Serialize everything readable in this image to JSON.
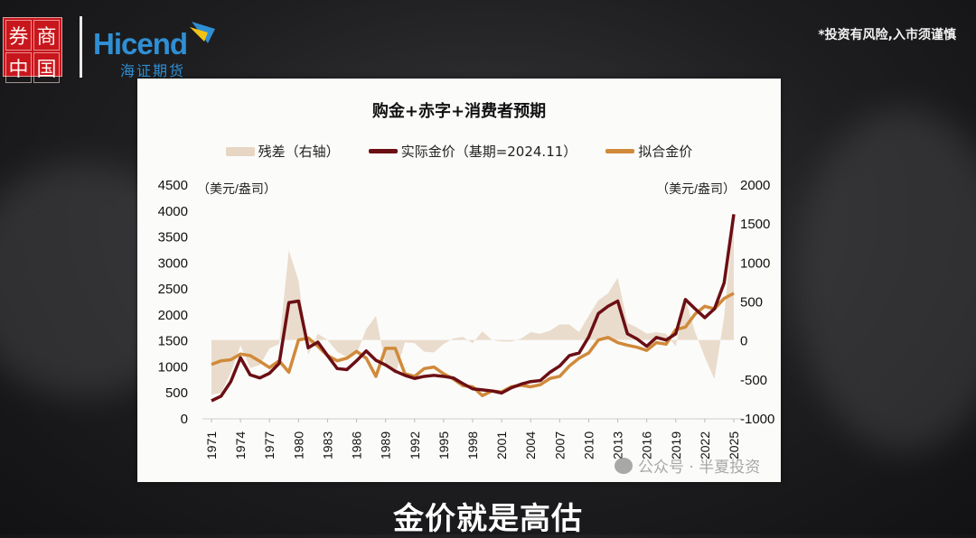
{
  "header": {
    "seal_chars": [
      "券",
      "商",
      "中",
      "国"
    ],
    "brand_name": "Hicend",
    "brand_cn": "海证期货",
    "disclaimer": "*投资有风险,入市须谨慎"
  },
  "subtitle": "金价就是高估",
  "watermark": {
    "label": "公众号 · 半夏投资"
  },
  "colors": {
    "actual": "#6b0f14",
    "fitted": "#d08a3a",
    "residual": "#e6d6c3"
  },
  "chart_data": {
    "type": "line",
    "title": "购金+赤字+消费者预期",
    "legend": [
      {
        "name": "残差（右轴）",
        "style": "area"
      },
      {
        "name": "实际金价（基期=2024.11）",
        "style": "line"
      },
      {
        "name": "拟合金价",
        "style": "line"
      }
    ],
    "legend_position": "top",
    "ylabel_left": "（美元/盎司）",
    "ylabel_right": "（美元/盎司）",
    "ylim_left": [
      0,
      4500
    ],
    "yticks_left": [
      "4500",
      "4000",
      "3500",
      "3000",
      "2500",
      "2000",
      "1500",
      "1000",
      "500",
      "0"
    ],
    "ylim_right": [
      -1000,
      2000
    ],
    "yticks_right": [
      "2000",
      "1500",
      "1000",
      "500",
      "0",
      "-500",
      "-1000"
    ],
    "xtick_labels": [
      "1971",
      "1974",
      "1977",
      "1980",
      "1983",
      "1986",
      "1989",
      "1992",
      "1995",
      "1998",
      "2001",
      "2004",
      "2007",
      "2010",
      "2013",
      "2016",
      "2019",
      "2022",
      "2025"
    ],
    "grid": false,
    "x": [
      1971,
      1972,
      1973,
      1974,
      1975,
      1976,
      1977,
      1978,
      1979,
      1980,
      1981,
      1982,
      1983,
      1984,
      1985,
      1986,
      1987,
      1988,
      1989,
      1990,
      1991,
      1992,
      1993,
      1994,
      1995,
      1996,
      1997,
      1998,
      1999,
      2000,
      2001,
      2002,
      2003,
      2004,
      2005,
      2006,
      2007,
      2008,
      2009,
      2010,
      2011,
      2012,
      2013,
      2014,
      2015,
      2016,
      2017,
      2018,
      2019,
      2020,
      2021,
      2022,
      2023,
      2024,
      2025
    ],
    "series": [
      {
        "name": "实际金价（基期=2024.11）",
        "axis": "left",
        "values": [
          330,
          420,
          700,
          1160,
          830,
          770,
          860,
          1050,
          2220,
          2250,
          1350,
          1460,
          1200,
          950,
          930,
          1100,
          1290,
          1110,
          1020,
          900,
          820,
          760,
          800,
          820,
          800,
          770,
          660,
          560,
          540,
          520,
          480,
          580,
          650,
          700,
          720,
          880,
          1000,
          1200,
          1250,
          1560,
          2010,
          2150,
          2250,
          1620,
          1520,
          1380,
          1550,
          1500,
          1620,
          2280,
          2100,
          1930,
          2100,
          2600,
          3920
        ]
      },
      {
        "name": "拟合金价",
        "axis": "left",
        "values": [
          1030,
          1100,
          1120,
          1230,
          1200,
          1090,
          970,
          1100,
          880,
          1500,
          1540,
          1380,
          1200,
          1100,
          1150,
          1280,
          1150,
          800,
          1340,
          1340,
          850,
          800,
          950,
          980,
          850,
          750,
          620,
          600,
          430,
          520,
          500,
          600,
          630,
          600,
          640,
          760,
          800,
          1000,
          1150,
          1250,
          1500,
          1550,
          1450,
          1400,
          1360,
          1300,
          1450,
          1420,
          1700,
          1750,
          2000,
          2150,
          2100,
          2300,
          2400
        ]
      },
      {
        "name": "残差（右轴）",
        "axis": "right",
        "values": [
          -700,
          -680,
          -420,
          -70,
          -360,
          -320,
          -110,
          -50,
          1150,
          760,
          -190,
          80,
          0,
          -150,
          -220,
          -180,
          140,
          310,
          -320,
          -440,
          -30,
          -40,
          -150,
          -160,
          -50,
          20,
          40,
          -40,
          110,
          0,
          -20,
          -20,
          20,
          100,
          80,
          120,
          200,
          200,
          100,
          310,
          510,
          600,
          800,
          220,
          160,
          80,
          100,
          80,
          -80,
          530,
          100,
          -220,
          -500,
          300,
          1580
        ]
      }
    ]
  }
}
